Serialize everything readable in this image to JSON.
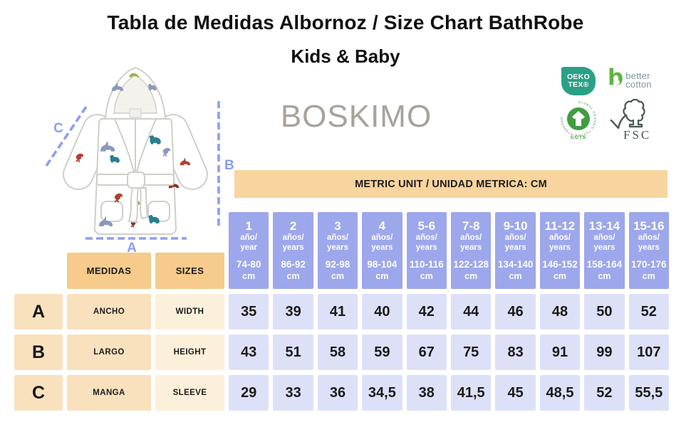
{
  "title": "Tabla de Medidas Albornoz / Size Chart BathRobe",
  "subtitle": "Kids & Baby",
  "brand": "BOSKIMO",
  "banner": "METRIC UNIT / UNIDAD METRICA: CM",
  "diagram": {
    "a": "A",
    "b": "B",
    "c": "C"
  },
  "certifications": {
    "oeko_tex": {
      "line1": "OEKO",
      "line2": "TEX®"
    },
    "better_cotton": {
      "line1": "better",
      "line2": "cotton"
    },
    "gots": {
      "label": "GOTS",
      "ring_text": "GLOBAL ORGANIC TEXTILE STANDARD"
    },
    "fsc": {
      "label": "FSC"
    }
  },
  "table": {
    "header": {
      "medidas": "MEDIDAS",
      "sizes": "SIZES"
    },
    "size_columns": [
      {
        "age": "1",
        "unit_es": "año/",
        "unit_en": "year",
        "range": "74-80",
        "cm": "cm"
      },
      {
        "age": "2",
        "unit_es": "años/",
        "unit_en": "years",
        "range": "86-92",
        "cm": "cm"
      },
      {
        "age": "3",
        "unit_es": "años/",
        "unit_en": "years",
        "range": "92-98",
        "cm": "cm"
      },
      {
        "age": "4",
        "unit_es": "años/",
        "unit_en": "years",
        "range": "98-104",
        "cm": "cm"
      },
      {
        "age": "5-6",
        "unit_es": "años/",
        "unit_en": "years",
        "range": "110-116",
        "cm": "cm"
      },
      {
        "age": "7-8",
        "unit_es": "años/",
        "unit_en": "years",
        "range": "122-128",
        "cm": "cm"
      },
      {
        "age": "9-10",
        "unit_es": "años/",
        "unit_en": "years",
        "range": "134-140",
        "cm": "cm"
      },
      {
        "age": "11-12",
        "unit_es": "años/",
        "unit_en": "years",
        "range": "146-152",
        "cm": "cm"
      },
      {
        "age": "13-14",
        "unit_es": "años/",
        "unit_en": "years",
        "range": "158-164",
        "cm": "cm"
      },
      {
        "age": "15-16",
        "unit_es": "años/",
        "unit_en": "years",
        "range": "170-176",
        "cm": "cm"
      }
    ],
    "rows": [
      {
        "letter": "A",
        "es": "ANCHO",
        "en": "WIDTH",
        "values": [
          "35",
          "39",
          "41",
          "40",
          "42",
          "44",
          "46",
          "48",
          "50",
          "52"
        ]
      },
      {
        "letter": "B",
        "es": "LARGO",
        "en": "HEIGHT",
        "values": [
          "43",
          "51",
          "58",
          "59",
          "67",
          "75",
          "83",
          "91",
          "99",
          "107"
        ]
      },
      {
        "letter": "C",
        "es": "MANGA",
        "en": "SLEEVE",
        "values": [
          "29",
          "33",
          "36",
          "34,5",
          "38",
          "41,5",
          "45",
          "48,5",
          "52",
          "55,5"
        ]
      }
    ]
  },
  "palette": {
    "ink": "#1f1f1f",
    "purple": "#9da7eb",
    "lavender": "#dde1f8",
    "peach_dark": "#f6cb8b",
    "peach": "#fae1bd",
    "cream": "#fdf0da",
    "banner": "#f8d49e",
    "peri": "#8b9ff0",
    "brand_gray": "#a8a29b",
    "oeko_teal": "#2aa086",
    "bc_green": "#5fb441",
    "bc_gray": "#7e97a1",
    "gots_green": "#3f9c3f",
    "fsc_dark": "#47564f",
    "robe_outline": "#cfcfc9",
    "robe_lining": "#f3f2ec",
    "dino_red": "#b23f2b",
    "dino_darkred": "#8e3023",
    "dino_steel": "#8a99b7",
    "dino_teal": "#27808f",
    "dino_olive": "#9fae3c"
  }
}
